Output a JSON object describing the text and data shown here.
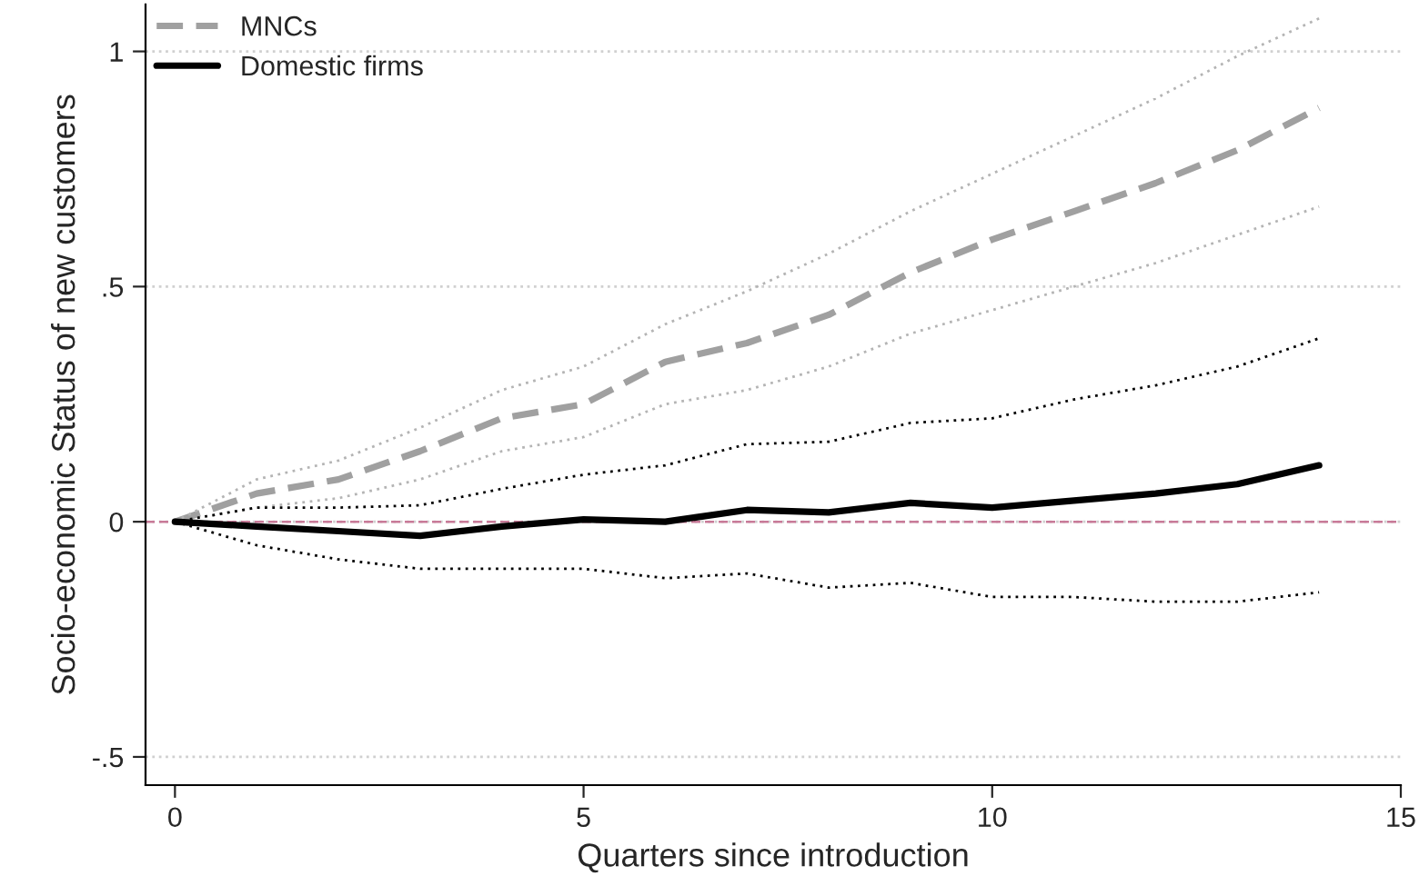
{
  "chart_data": {
    "type": "line",
    "xlabel": "Quarters since introduction",
    "ylabel": "Socio-economic Status of new customers",
    "x": [
      0,
      1,
      2,
      3,
      4,
      5,
      6,
      7,
      8,
      9,
      10,
      11,
      12,
      13,
      14
    ],
    "series": [
      {
        "name": "MNCs",
        "color": "#a0a0a0",
        "line_style": "dashed",
        "values": [
          0,
          0.06,
          0.09,
          0.15,
          0.22,
          0.25,
          0.34,
          0.38,
          0.44,
          0.53,
          0.6,
          0.66,
          0.72,
          0.79,
          0.88
        ]
      },
      {
        "color": "#b4b4b4",
        "line_style": "dotted",
        "values": [
          0,
          0.09,
          0.13,
          0.2,
          0.28,
          0.33,
          0.42,
          0.49,
          0.57,
          0.66,
          0.74,
          0.82,
          0.9,
          0.99,
          1.07
        ]
      },
      {
        "color": "#b4b4b4",
        "line_style": "dotted",
        "values": [
          0,
          0.03,
          0.05,
          0.09,
          0.15,
          0.18,
          0.25,
          0.28,
          0.33,
          0.4,
          0.45,
          0.5,
          0.55,
          0.61,
          0.67
        ]
      },
      {
        "name": "Domestic firms",
        "color": "#000000",
        "line_style": "solid",
        "values": [
          0,
          -0.01,
          -0.02,
          -0.03,
          -0.01,
          0.005,
          0,
          0.025,
          0.02,
          0.04,
          0.03,
          0.045,
          0.06,
          0.08,
          0.12
        ]
      },
      {
        "color": "#000000",
        "line_style": "dotted",
        "values": [
          0,
          0.03,
          0.03,
          0.035,
          0.07,
          0.1,
          0.12,
          0.165,
          0.17,
          0.21,
          0.22,
          0.26,
          0.29,
          0.33,
          0.39
        ]
      },
      {
        "color": "#000000",
        "line_style": "dotted",
        "values": [
          0,
          -0.05,
          -0.08,
          -0.1,
          -0.1,
          -0.1,
          -0.12,
          -0.11,
          -0.14,
          -0.13,
          -0.16,
          -0.16,
          -0.17,
          -0.17,
          -0.15
        ]
      }
    ],
    "xlim": [
      -0.36,
      15
    ],
    "xticks": [
      0,
      5,
      10,
      15
    ],
    "ylim": [
      -0.56,
      1.1
    ],
    "yticks": [
      {
        "value": -0.5,
        "label": "-.5"
      },
      0,
      {
        "value": 0.5,
        "label": ".5"
      },
      1
    ],
    "ref_lines": [
      {
        "axis": "y",
        "value": 0,
        "color": "#c87a98",
        "line_style": "dashed"
      }
    ],
    "grid": "y",
    "legend": "top left"
  }
}
